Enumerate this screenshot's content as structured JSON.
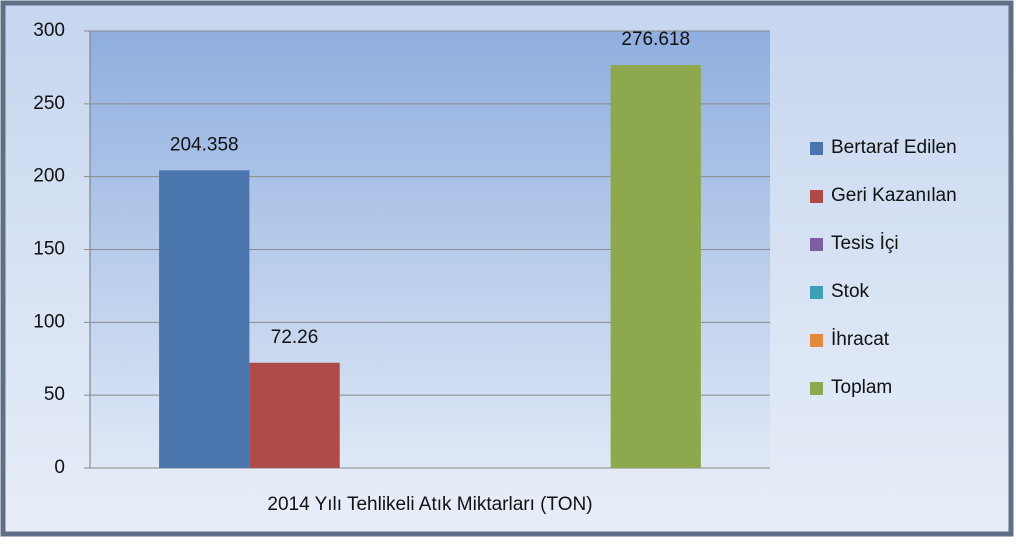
{
  "chart_data": {
    "type": "bar",
    "categories": [
      "2014 Yılı Tehlikeli Atık Miktarları (TON)"
    ],
    "series": [
      {
        "name": "Bertaraf Edilen",
        "color": "#4a75ad",
        "values": [
          204.358
        ]
      },
      {
        "name": "Geri Kazanılan",
        "color": "#ae4a48",
        "values": [
          72.26
        ]
      },
      {
        "name": "Tesis İçi",
        "color": "#7b5fa0",
        "values": [
          null
        ]
      },
      {
        "name": "Stok",
        "color": "#3fa0b8",
        "values": [
          null
        ]
      },
      {
        "name": "İhracat",
        "color": "#e28a3c",
        "values": [
          null
        ]
      },
      {
        "name": "Toplam",
        "color": "#8ea84d",
        "values": [
          276.618
        ]
      }
    ],
    "ylim": [
      0,
      300
    ],
    "yticks": [
      0,
      50,
      100,
      150,
      200,
      250,
      300
    ],
    "grid": true,
    "legend": "right"
  }
}
